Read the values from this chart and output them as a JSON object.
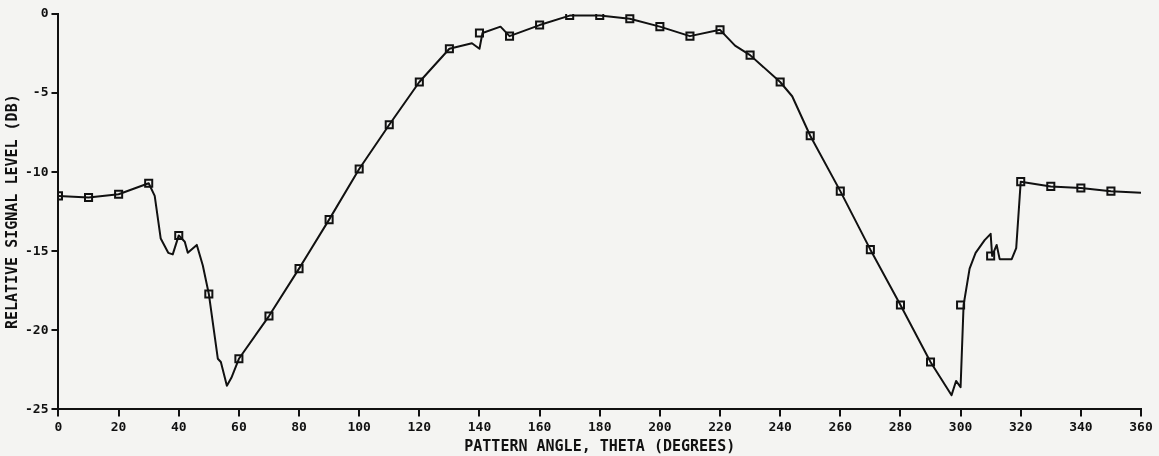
{
  "chart_data": {
    "type": "line",
    "xlabel": "PATTERN ANGLE, THETA (DEGREES)",
    "ylabel": "RELATIVE SIGNAL LEVEL (DB)",
    "xlim": [
      0,
      360
    ],
    "xticks": [
      0,
      20,
      40,
      60,
      80,
      100,
      120,
      140,
      160,
      180,
      200,
      220,
      240,
      260,
      280,
      300,
      320,
      340,
      360
    ],
    "ylim": [
      -25,
      0
    ],
    "yticks": [
      -25,
      -20,
      -15,
      -10,
      -5,
      0
    ],
    "grid": false,
    "legend": false,
    "series": [
      {
        "type": "line",
        "color": "#111111",
        "marker": "none",
        "line_style": "solid",
        "x": [
          0,
          10,
          20,
          30,
          32,
          34,
          36.5,
          38,
          40,
          42,
          43,
          46,
          48,
          50,
          53,
          54,
          56,
          57.5,
          60,
          70,
          80,
          90,
          100,
          110,
          120,
          130,
          137.5,
          140,
          141,
          147,
          150,
          160,
          170,
          180,
          190,
          200,
          210,
          220,
          225,
          230,
          240,
          244,
          250,
          260,
          270,
          280,
          290,
          297,
          298.5,
          300,
          301,
          303,
          305,
          308,
          310,
          310.5,
          312,
          313,
          317,
          318.5,
          320,
          330,
          340,
          350,
          360
        ],
        "values": [
          -11.5,
          -11.6,
          -11.4,
          -10.7,
          -11.5,
          -14.2,
          -15.1,
          -15.2,
          -14.0,
          -14.4,
          -15.1,
          -14.6,
          -15.9,
          -17.7,
          -21.8,
          -22.0,
          -23.5,
          -23.0,
          -21.8,
          -19.1,
          -16.1,
          -13.0,
          -9.8,
          -7.0,
          -4.3,
          -2.2,
          -1.85,
          -2.2,
          -1.2,
          -0.8,
          -1.4,
          -0.7,
          -0.1,
          -0.1,
          -0.3,
          -0.8,
          -1.4,
          -1.0,
          -2.0,
          -2.6,
          -4.3,
          -5.2,
          -7.7,
          -11.2,
          -14.9,
          -18.4,
          -22.0,
          -24.1,
          -23.2,
          -23.6,
          -18.4,
          -16.1,
          -15.1,
          -14.3,
          -13.9,
          -15.3,
          -14.6,
          -15.5,
          -15.5,
          -14.8,
          -10.6,
          -10.9,
          -11.0,
          -11.2,
          -11.3
        ]
      },
      {
        "type": "scatter",
        "color": "#111111",
        "marker": "square",
        "x": [
          0,
          10,
          20,
          30,
          40,
          50,
          60,
          70,
          80,
          90,
          100,
          110,
          120,
          130,
          140,
          150,
          160,
          170,
          180,
          190,
          200,
          210,
          220,
          230,
          240,
          250,
          260,
          270,
          280,
          290,
          300,
          310,
          320,
          330,
          340,
          350
        ],
        "values": [
          -11.5,
          -11.6,
          -11.4,
          -10.7,
          -14.0,
          -17.7,
          -21.8,
          -19.1,
          -16.1,
          -13.0,
          -9.8,
          -7.0,
          -4.3,
          -2.2,
          -1.2,
          -1.4,
          -0.7,
          -0.1,
          -0.1,
          -0.3,
          -0.8,
          -1.4,
          -1.0,
          -2.6,
          -4.3,
          -7.7,
          -11.2,
          -14.9,
          -18.4,
          -22.0,
          -18.4,
          -15.3,
          -10.6,
          -10.9,
          -11.0,
          -11.2
        ]
      }
    ]
  }
}
